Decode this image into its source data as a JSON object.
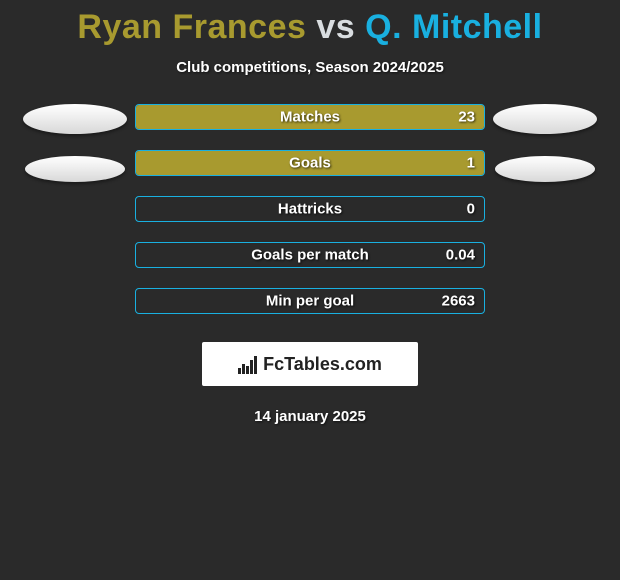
{
  "background_color": "#2a2a2a",
  "title": {
    "player1": "Ryan Frances",
    "vs": "vs",
    "player2": "Q. Mitchell",
    "player1_color": "#a89a2f",
    "vs_color": "#d9dde0",
    "player2_color": "#19b0e0"
  },
  "subtitle": "Club competitions, Season 2024/2025",
  "bar_style": {
    "track_border_color": "#19b0e0",
    "fill_color": "#a89a2f"
  },
  "stats": [
    {
      "label": "Matches",
      "value": "23",
      "fill_pct": 100
    },
    {
      "label": "Goals",
      "value": "1",
      "fill_pct": 100
    },
    {
      "label": "Hattricks",
      "value": "0",
      "fill_pct": 0
    },
    {
      "label": "Goals per match",
      "value": "0.04",
      "fill_pct": 0
    },
    {
      "label": "Min per goal",
      "value": "2663",
      "fill_pct": 0
    }
  ],
  "logo_text": "FcTables.com",
  "date": "14 january 2025"
}
